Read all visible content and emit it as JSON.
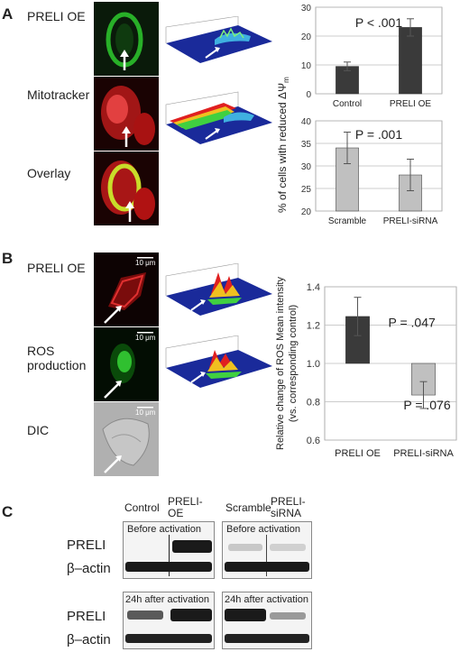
{
  "panel_a": {
    "letter": "A",
    "rows": [
      {
        "label": "PRELI OE",
        "color": "#2fd42f"
      },
      {
        "label": "Mitotracker",
        "color": "#e02626"
      },
      {
        "label": "Overlay",
        "color": "#b8d830"
      }
    ]
  },
  "panel_b": {
    "letter": "B",
    "rows": [
      {
        "label_lines": [
          "PRELI OE"
        ]
      },
      {
        "label_lines": [
          "ROS",
          "production"
        ]
      },
      {
        "label_lines": [
          "DIC"
        ]
      }
    ],
    "scale_bar": "10 μm"
  },
  "panel_c": {
    "letter": "C",
    "left_headers": [
      "Control",
      "PRELI-\nOE"
    ],
    "right_headers": [
      "Scramble",
      "PRELI-\nsiRNA"
    ],
    "before_label": "Before activation",
    "after_label": "24h after activation",
    "row_labels": [
      "PRELI",
      "β–actin",
      "PRELI",
      "β–actin"
    ]
  },
  "chart_data": [
    {
      "type": "bar",
      "categories": [
        "Control",
        "PRELI OE"
      ],
      "values": [
        9.5,
        23
      ],
      "errors": [
        1.5,
        3
      ],
      "ylim": [
        0,
        30
      ],
      "yticks": [
        0,
        10,
        20,
        30
      ],
      "annotation": "P < .001",
      "colors": [
        "#3a3a3a",
        "#3a3a3a"
      ]
    },
    {
      "type": "bar",
      "categories": [
        "Scramble",
        "PRELI-siRNA"
      ],
      "values": [
        34,
        28
      ],
      "errors": [
        3.5,
        3.5
      ],
      "ylim": [
        20,
        40
      ],
      "yticks": [
        20,
        25,
        30,
        35,
        40
      ],
      "annotation": "P = .001",
      "colors": [
        "#c0c0c0",
        "#c0c0c0"
      ]
    },
    {
      "type": "bar",
      "categories": [
        "PRELI OE",
        "PRELI-siRNA"
      ],
      "values": [
        1.245,
        0.835
      ],
      "errors": [
        0.1,
        0.07
      ],
      "baseline": 1.0,
      "ylim": [
        0.6,
        1.4
      ],
      "yticks": [
        "0.6",
        "0.8",
        "1.0",
        "1.2",
        "1.4"
      ],
      "annotations": [
        "P = .047",
        "P = .076"
      ],
      "ylabel_lines": [
        "Relative change of ROS Mean intensity",
        "(vs. corresponding control)"
      ],
      "colors": [
        "#3a3a3a",
        "#c0c0c0"
      ]
    }
  ],
  "shared_ylabel_a": "% of cells with reduced ΔΨ",
  "shared_ylabel_a_sub": "m"
}
